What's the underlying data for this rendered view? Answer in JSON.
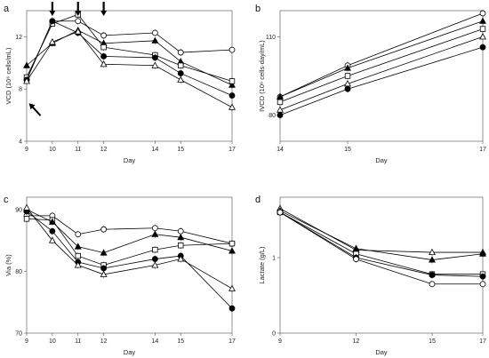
{
  "chart_data": [
    {
      "panel": "a",
      "type": "line",
      "xlabel": "Day",
      "ylabel": "VCD (10⁶ cells/mL)",
      "x": [
        9,
        10,
        11,
        12,
        14,
        15,
        17
      ],
      "xlim": [
        9,
        17
      ],
      "ylim": [
        4,
        14
      ],
      "yticks": [
        4,
        8,
        12
      ],
      "arrow_days": [
        10,
        11,
        12
      ],
      "series": [
        {
          "marker": "open-circle",
          "values": [
            8.7,
            13.2,
            13.2,
            12.1,
            12.3,
            10.8,
            11.0
          ]
        },
        {
          "marker": "filled-triangle",
          "values": [
            9.8,
            11.5,
            12.5,
            11.5,
            11.7,
            10.1,
            8.3
          ]
        },
        {
          "marker": "open-square",
          "values": [
            8.9,
            13.0,
            13.7,
            11.2,
            10.6,
            9.8,
            8.6
          ]
        },
        {
          "marker": "filled-circle",
          "values": [
            8.7,
            13.2,
            12.3,
            10.5,
            10.4,
            9.2,
            7.5
          ]
        },
        {
          "marker": "open-triangle",
          "values": [
            8.6,
            11.6,
            12.4,
            9.9,
            9.8,
            8.7,
            6.6
          ]
        }
      ]
    },
    {
      "panel": "b",
      "type": "line",
      "xlabel": "Day",
      "ylabel": "IVCD (10⁶ cells·day/mL)",
      "x": [
        14,
        15,
        17
      ],
      "xlim": [
        14,
        17
      ],
      "ylim": [
        70,
        120
      ],
      "yticks": [
        80,
        110
      ],
      "series": [
        {
          "marker": "open-circle",
          "values": [
            87,
            99,
            119
          ]
        },
        {
          "marker": "filled-triangle",
          "values": [
            87,
            98,
            116
          ]
        },
        {
          "marker": "open-square",
          "values": [
            85,
            95,
            113
          ]
        },
        {
          "marker": "open-triangle",
          "values": [
            82,
            92,
            110
          ]
        },
        {
          "marker": "filled-circle",
          "values": [
            80,
            90,
            106
          ]
        }
      ]
    },
    {
      "panel": "c",
      "type": "line",
      "xlabel": "Day",
      "ylabel": "Via (%)",
      "x": [
        9,
        10,
        11,
        12,
        14,
        15,
        17
      ],
      "xlim": [
        9,
        17
      ],
      "ylim": [
        70,
        92
      ],
      "yticks": [
        70,
        80,
        90
      ],
      "series": [
        {
          "marker": "open-circle",
          "values": [
            89,
            89,
            86,
            86.8,
            87,
            86.5,
            84.5
          ]
        },
        {
          "marker": "open-square",
          "values": [
            88.5,
            88.3,
            82.5,
            81,
            83.5,
            84.2,
            84.5
          ]
        },
        {
          "marker": "filled-triangle",
          "values": [
            90,
            88,
            84,
            83,
            86,
            85.5,
            83.3
          ]
        },
        {
          "marker": "filled-circle",
          "values": [
            89.7,
            86.5,
            81.5,
            80.5,
            82,
            82.5,
            74
          ]
        },
        {
          "marker": "open-triangle",
          "values": [
            90.3,
            85,
            81,
            79.5,
            81,
            82,
            77.2
          ]
        }
      ]
    },
    {
      "panel": "d",
      "type": "line",
      "xlabel": "Day",
      "ylabel": "Lactate (g/L)",
      "x": [
        9,
        12,
        15,
        17
      ],
      "xlim": [
        9,
        17
      ],
      "ylim": [
        0,
        1.8
      ],
      "yticks": [
        0,
        1
      ],
      "series": [
        {
          "marker": "open-triangle",
          "values": [
            1.65,
            1.1,
            1.07,
            1.07
          ]
        },
        {
          "marker": "filled-triangle",
          "values": [
            1.62,
            1.12,
            0.97,
            1.05
          ]
        },
        {
          "marker": "open-square",
          "values": [
            1.6,
            1.05,
            0.78,
            0.78
          ]
        },
        {
          "marker": "filled-circle",
          "values": [
            1.6,
            1.0,
            0.77,
            0.75
          ]
        },
        {
          "marker": "open-circle",
          "values": [
            1.6,
            0.98,
            0.65,
            0.65
          ]
        }
      ]
    }
  ]
}
